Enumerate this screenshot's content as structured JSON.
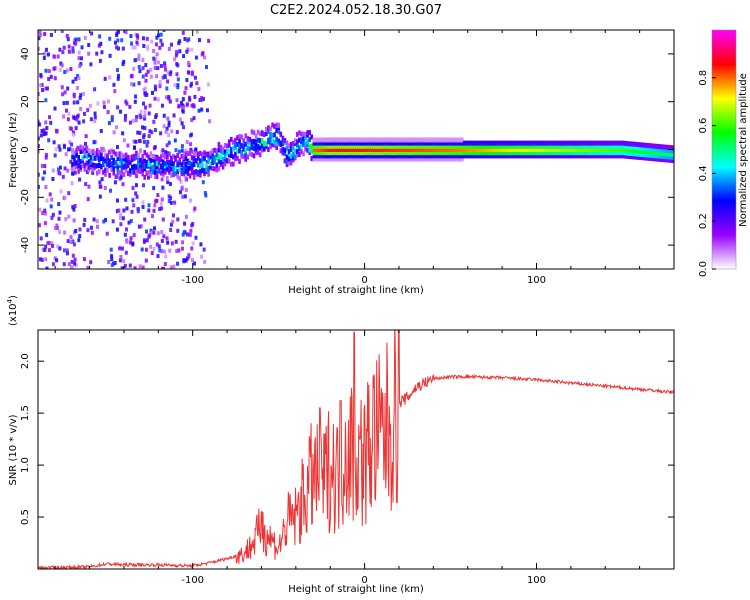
{
  "title": "C2E2.2024.052.18.30.G07",
  "chart_data": [
    {
      "type": "heatmap",
      "xlabel": "Height of straight line (km)",
      "ylabel": "Frequency (Hz)",
      "xlim": [
        -190,
        180
      ],
      "ylim": [
        -50,
        50
      ],
      "x_ticks": [
        -100,
        0,
        100
      ],
      "x_tick_labels": [
        "-100",
        "0",
        "100"
      ],
      "y_ticks": [
        -40,
        -20,
        0,
        20,
        40
      ],
      "y_tick_labels": [
        "-40",
        "-20",
        "0",
        "20",
        "40"
      ],
      "colorbar": {
        "label": "Normalized spectral amplitude",
        "range": [
          0,
          1
        ],
        "ticks": [
          0.0,
          0.2,
          0.4,
          0.6,
          0.8
        ],
        "tick_labels": [
          "0.0",
          "0.2",
          "0.4",
          "0.6",
          "0.8"
        ],
        "colors": [
          "#ffffff",
          "#9900ff",
          "#0000ff",
          "#00ffff",
          "#00ff00",
          "#ffff00",
          "#ff0000",
          "#ff00ff"
        ]
      },
      "ridge": [
        {
          "x": -160,
          "y": -4,
          "amp": 0.35
        },
        {
          "x": -145,
          "y": -6,
          "amp": 0.4
        },
        {
          "x": -130,
          "y": -6,
          "amp": 0.4
        },
        {
          "x": -115,
          "y": -7,
          "amp": 0.4
        },
        {
          "x": -100,
          "y": -7,
          "amp": 0.42
        },
        {
          "x": -90,
          "y": -5,
          "amp": 0.45
        },
        {
          "x": -80,
          "y": -2,
          "amp": 0.45
        },
        {
          "x": -70,
          "y": 1,
          "amp": 0.45
        },
        {
          "x": -60,
          "y": 3,
          "amp": 0.45
        },
        {
          "x": -50,
          "y": 6,
          "amp": 0.45
        },
        {
          "x": -45,
          "y": -3,
          "amp": 0.45
        },
        {
          "x": -35,
          "y": 4,
          "amp": 0.4
        },
        {
          "x": -30,
          "y": 0,
          "amp": 0.8
        },
        {
          "x": -20,
          "y": 0,
          "amp": 0.85
        },
        {
          "x": 0,
          "y": 0,
          "amp": 0.85
        },
        {
          "x": 50,
          "y": 0,
          "amp": 0.8
        },
        {
          "x": 100,
          "y": 0,
          "amp": 0.7
        },
        {
          "x": 150,
          "y": 0,
          "amp": 0.6
        },
        {
          "x": 180,
          "y": -2,
          "amp": 0.5
        }
      ]
    },
    {
      "type": "line",
      "xlabel": "Height of straight line (km)",
      "ylabel": "SNR (10 * v/v)",
      "y_multiplier_label": "(x10",
      "y_multiplier_exp": "4",
      "y_multiplier_close": ")",
      "xlim": [
        -190,
        180
      ],
      "ylim": [
        0,
        2.3
      ],
      "x_ticks": [
        -100,
        0,
        100
      ],
      "x_tick_labels": [
        "-100",
        "0",
        "100"
      ],
      "y_ticks": [
        0.5,
        1.0,
        1.5,
        2.0
      ],
      "y_tick_labels": [
        "0.5",
        "1.0",
        "1.5",
        "2.0"
      ],
      "color": "#ee3333",
      "x": [
        -190,
        -160,
        -150,
        -140,
        -120,
        -100,
        -90,
        -80,
        -70,
        -65,
        -60,
        -55,
        -50,
        -45,
        -40,
        -35,
        -30,
        -25,
        -20,
        -15,
        -10,
        -5,
        0,
        5,
        10,
        15,
        20,
        25,
        30,
        40,
        50,
        60,
        80,
        100,
        120,
        140,
        160,
        180
      ],
      "values": [
        0.01,
        0.02,
        0.05,
        0.04,
        0.04,
        0.03,
        0.06,
        0.1,
        0.15,
        0.25,
        0.4,
        0.3,
        0.2,
        0.45,
        0.5,
        0.7,
        0.9,
        0.8,
        1.0,
        0.9,
        1.2,
        1.1,
        1.05,
        1.3,
        1.25,
        1.4,
        1.6,
        1.65,
        1.75,
        1.83,
        1.85,
        1.85,
        1.84,
        1.82,
        1.79,
        1.76,
        1.73,
        1.7
      ],
      "notes_peaks": [
        {
          "x": -6,
          "y": 2.28
        },
        {
          "x": -14,
          "y": 1.62
        },
        {
          "x": -26,
          "y": 1.55
        },
        {
          "x": -60,
          "y": 0.55
        }
      ]
    }
  ]
}
